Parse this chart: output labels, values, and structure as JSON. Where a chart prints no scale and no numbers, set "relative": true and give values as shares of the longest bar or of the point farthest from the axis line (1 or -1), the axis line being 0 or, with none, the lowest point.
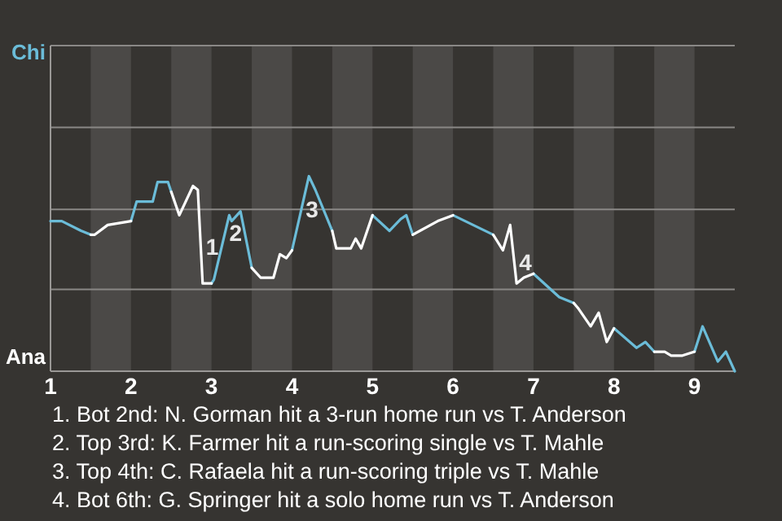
{
  "chart_data": {
    "type": "line",
    "relative": true,
    "series": [
      {
        "color": "#6bbcd8",
        "x": [
          1,
          1.14,
          1.38,
          1.5,
          1.75,
          2,
          2.07,
          2.27,
          2.33,
          2.46,
          2.5,
          2.75,
          3,
          3.03,
          3.22,
          3.25,
          3.36,
          3.5,
          3.75,
          4,
          4.21,
          4.29,
          4.5,
          4.75,
          5,
          5.21,
          5.35,
          5.42,
          5.5,
          5.75,
          6,
          6.5,
          6.75,
          7,
          7.32,
          7.5,
          7.75,
          8,
          8.28,
          8.39,
          8.5,
          8.75,
          9,
          9.1,
          9.29,
          9.39,
          9.5
        ],
        "values": [
          0.77,
          0.77,
          0.72,
          0.7,
          null,
          0.77,
          0.87,
          0.87,
          0.97,
          0.97,
          0.92,
          null,
          0.45,
          0.47,
          0.8,
          0.77,
          0.82,
          0.53,
          null,
          0.62,
          1,
          0.93,
          0.72,
          null,
          0.8,
          0.72,
          0.78,
          0.8,
          0.7,
          null,
          0.8,
          0.7,
          null,
          0.5,
          0.38,
          0.35,
          null,
          0.22,
          0.12,
          0.15,
          0.1,
          null,
          0.1,
          0.23,
          0.05,
          0.1,
          0
        ]
      },
      {
        "color": "#ffffff",
        "x": [
          1.5,
          1.55,
          1.71,
          2,
          2.25,
          2.5,
          2.6,
          2.77,
          2.83,
          2.89,
          3,
          3.25,
          3.5,
          3.61,
          3.77,
          3.85,
          3.93,
          4,
          4.25,
          4.5,
          4.55,
          4.73,
          4.79,
          4.86,
          5,
          5.25,
          5.5,
          5.81,
          6,
          6.25,
          6.5,
          6.62,
          6.71,
          6.79,
          6.88,
          7,
          7.25,
          7.5,
          7.56,
          7.71,
          7.81,
          7.91,
          8,
          8.25,
          8.5,
          8.63,
          8.71,
          8.85,
          9
        ],
        "values": [
          0.7,
          0.7,
          0.75,
          0.77,
          null,
          0.92,
          0.8,
          0.95,
          0.93,
          0.45,
          0.45,
          null,
          0.53,
          0.48,
          0.48,
          0.6,
          0.58,
          0.62,
          null,
          0.72,
          0.63,
          0.63,
          0.68,
          0.63,
          0.8,
          null,
          0.7,
          0.77,
          0.8,
          null,
          0.7,
          0.62,
          0.75,
          0.45,
          0.48,
          0.5,
          null,
          0.35,
          0.32,
          0.23,
          0.3,
          0.15,
          0.22,
          null,
          0.1,
          0.1,
          0.08,
          0.08,
          0.1
        ]
      }
    ],
    "xlim": [
      1,
      9.5
    ],
    "xticks": [
      1,
      2,
      3,
      4,
      5,
      6,
      7,
      8,
      9
    ],
    "ref_lines": [
      {
        "axis": "y",
        "value": 0.42,
        "color": "#8a8886"
      },
      {
        "axis": "y",
        "value": 0.83,
        "color": "#8a8886"
      },
      {
        "axis": "y",
        "value": 1.25,
        "color": "#8a8886"
      },
      {
        "axis": "y",
        "value": 1.67,
        "color": "#8a8886"
      }
    ],
    "bands": [
      {
        "axis": "x",
        "from": 1.5,
        "to": 2,
        "color": "#4b4947"
      },
      {
        "axis": "x",
        "from": 2.5,
        "to": 3,
        "color": "#4b4947"
      },
      {
        "axis": "x",
        "from": 3.5,
        "to": 4,
        "color": "#4b4947"
      },
      {
        "axis": "x",
        "from": 4.5,
        "to": 5,
        "color": "#4b4947"
      },
      {
        "axis": "x",
        "from": 5.5,
        "to": 6,
        "color": "#4b4947"
      },
      {
        "axis": "x",
        "from": 6.5,
        "to": 7,
        "color": "#4b4947"
      },
      {
        "axis": "x",
        "from": 7.5,
        "to": 8,
        "color": "#4b4947"
      },
      {
        "axis": "x",
        "from": 8.5,
        "to": 9,
        "color": "#4b4947"
      }
    ],
    "annotations": [
      "Chi",
      "Ana",
      {
        "text": "1",
        "x": 2.87,
        "y": 0.63
      },
      {
        "text": "2",
        "x": 3.16,
        "y": 0.7
      },
      {
        "text": "3",
        "x": 4.11,
        "y": 0.82
      },
      {
        "text": "4",
        "x": 6.76,
        "y": 0.55
      },
      "1. Bot 2nd: N. Gorman hit a 3-run home run vs T. Anderson",
      "2. Top 3rd: K. Farmer hit a run-scoring single vs T. Mahle",
      "3. Top 4th: C. Rafaela hit a run-scoring triple vs T. Mahle",
      "4. Bot 6th: G. Springer hit a solo home run vs T. Anderson"
    ]
  }
}
